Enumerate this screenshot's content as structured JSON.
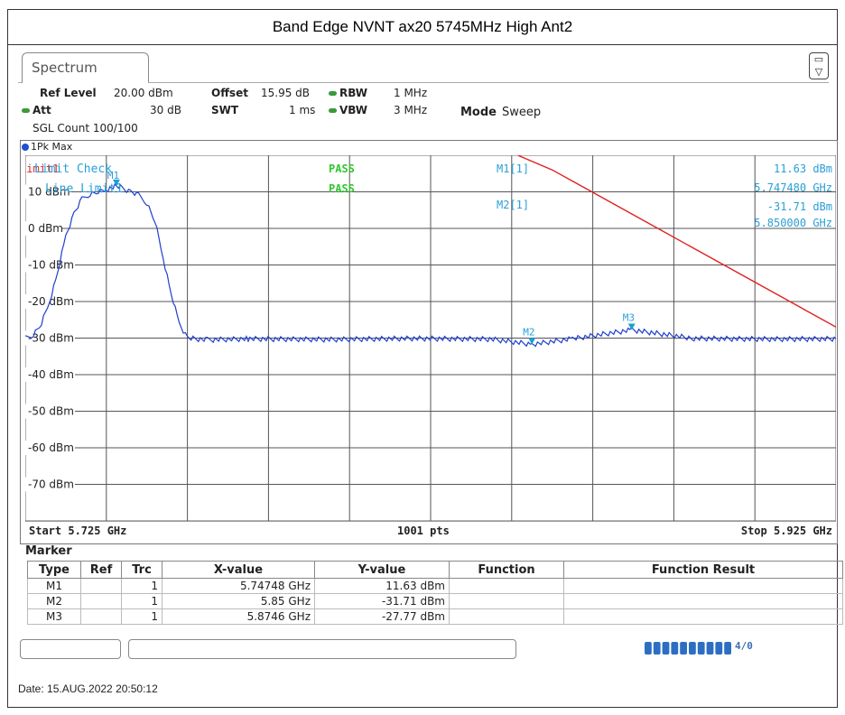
{
  "title": "Band Edge NVNT ax20 5745MHz High Ant2",
  "tab": {
    "label": "Spectrum"
  },
  "params": {
    "ref_level_label": "Ref Level",
    "ref_level_value": "20.00 dBm",
    "offset_label": "Offset",
    "offset_value": "15.95 dB",
    "rbw_label": "RBW",
    "rbw_value": "1 MHz",
    "att_label": "Att",
    "att_value": "30 dB",
    "swt_label": "SWT",
    "swt_value": "1 ms",
    "vbw_label": "VBW",
    "vbw_value": "3 MHz",
    "mode_label": "Mode",
    "mode_value": "Sweep",
    "sgl_count": "SGL Count 100/100"
  },
  "trace": {
    "label": "1Pk Max"
  },
  "overlay": {
    "limit_tag": "Limit1",
    "limit_check": "Limit Check",
    "line_limit": "Line Limit1",
    "pass1": "PASS",
    "pass2": "PASS",
    "m1_label": "M1[1]",
    "m1_level": "11.63 dBm",
    "m1_freq": "5.747480 GHz",
    "m2_label": "M2[1]",
    "m2_level": "-31.71 dBm",
    "m2_freq": "5.850000 GHz",
    "m1_tag": "M1",
    "m2_tag": "M2",
    "m3_tag": "M3"
  },
  "chart_data": {
    "type": "line",
    "x_unit": "GHz",
    "y_unit": "dBm",
    "xlim": [
      5.725,
      5.925
    ],
    "ylim": [
      -80,
      20
    ],
    "y_ticks": [
      "10 dBm",
      "0 dBm",
      "-10 dBm",
      "-20 dBm",
      "-30 dBm",
      "-40 dBm",
      "-50 dBm",
      "-60 dBm",
      "-70 dBm"
    ],
    "grid": true,
    "series": [
      {
        "name": "1Pk Max",
        "color": "#1f3fd0",
        "x": [
          5.725,
          5.727,
          5.729,
          5.731,
          5.733,
          5.735,
          5.737,
          5.739,
          5.741,
          5.743,
          5.745,
          5.7475,
          5.749,
          5.751,
          5.753,
          5.755,
          5.757,
          5.759,
          5.761,
          5.763,
          5.765,
          5.77,
          5.78,
          5.8,
          5.82,
          5.84,
          5.85,
          5.86,
          5.8746,
          5.89,
          5.91,
          5.925
        ],
        "y": [
          -30,
          -29,
          -26,
          -20,
          -12,
          -2,
          4,
          8,
          9.5,
          10,
          10.5,
          11.63,
          11,
          10,
          9,
          7,
          2,
          -8,
          -18,
          -26,
          -30,
          -30.5,
          -30.2,
          -30.4,
          -30.1,
          -30.3,
          -31.71,
          -30.2,
          -27.77,
          -30.1,
          -30.3,
          -30.2
        ]
      },
      {
        "name": "Limit1",
        "color": "#e02020",
        "x": [
          5.8465,
          5.855,
          5.925
        ],
        "y": [
          20,
          16,
          -27
        ]
      }
    ],
    "markers": [
      {
        "name": "M1",
        "x": 5.74748,
        "y": 11.63
      },
      {
        "name": "M2",
        "x": 5.85,
        "y": -31.71
      },
      {
        "name": "M3",
        "x": 5.8746,
        "y": -27.77
      }
    ]
  },
  "axis_footer": {
    "start": "Start 5.725 GHz",
    "points": "1001 pts",
    "stop": "Stop 5.925 GHz"
  },
  "marker_table": {
    "title": "Marker",
    "headers": [
      "Type",
      "Ref",
      "Trc",
      "X-value",
      "Y-value",
      "Function",
      "Function Result"
    ],
    "rows": [
      [
        "M1",
        "",
        "1",
        "5.74748 GHz",
        "11.63 dBm",
        "",
        ""
      ],
      [
        "M2",
        "",
        "1",
        "5.85 GHz",
        "-31.71 dBm",
        "",
        ""
      ],
      [
        "M3",
        "",
        "1",
        "5.8746 GHz",
        "-27.77 dBm",
        "",
        ""
      ]
    ]
  },
  "status": {
    "progress_fraction": 1.0,
    "progress_label": "4/0"
  },
  "date": "Date: 15.AUG.2022  20:50:12"
}
